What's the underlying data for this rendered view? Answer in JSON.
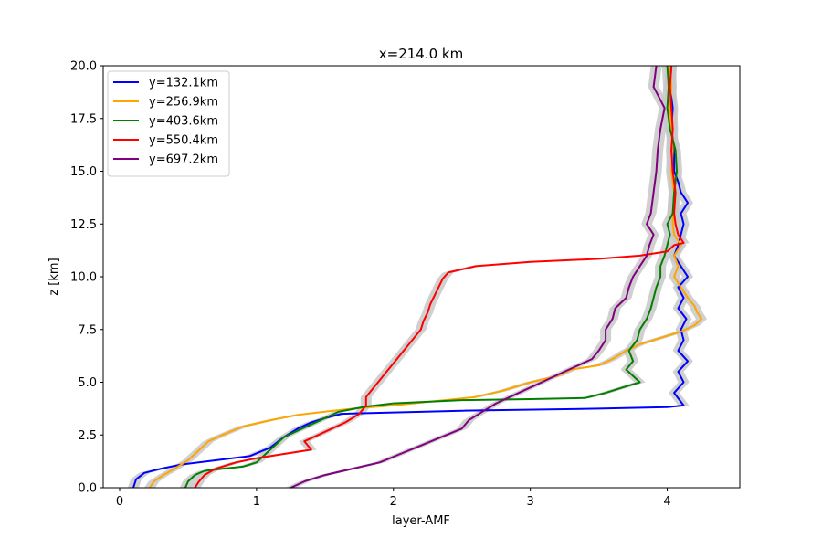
{
  "chart_data": {
    "type": "line",
    "title": "x=214.0 km",
    "xlabel": "layer-AMF",
    "ylabel": "z [km]",
    "xlim": [
      -0.12,
      4.53
    ],
    "ylim": [
      0,
      20
    ],
    "xticks": [
      0,
      1,
      2,
      3,
      4
    ],
    "xtick_labels": [
      "0",
      "1",
      "2",
      "3",
      "4"
    ],
    "yticks": [
      0,
      2.5,
      5,
      7.5,
      10,
      12.5,
      15,
      17.5,
      20
    ],
    "ytick_labels": [
      "0.0",
      "2.5",
      "5.0",
      "7.5",
      "10.0",
      "12.5",
      "15.0",
      "17.5",
      "20.0"
    ],
    "grid": false,
    "legend_position": "upper-left",
    "uncertainty_band_color": "#c8c8c8",
    "series": [
      {
        "name": "y=132.1km",
        "color": "#0000ff",
        "points": [
          [
            0.1,
            0.0
          ],
          [
            0.12,
            0.4
          ],
          [
            0.18,
            0.7
          ],
          [
            0.3,
            0.9
          ],
          [
            0.45,
            1.1
          ],
          [
            0.7,
            1.3
          ],
          [
            0.95,
            1.5
          ],
          [
            1.1,
            1.9
          ],
          [
            1.2,
            2.4
          ],
          [
            1.3,
            2.8
          ],
          [
            1.4,
            3.1
          ],
          [
            1.5,
            3.3
          ],
          [
            1.62,
            3.5
          ],
          [
            2.5,
            3.65
          ],
          [
            3.5,
            3.75
          ],
          [
            4.0,
            3.82
          ],
          [
            4.12,
            3.9
          ],
          [
            4.05,
            4.5
          ],
          [
            4.12,
            5.0
          ],
          [
            4.08,
            5.5
          ],
          [
            4.15,
            6.0
          ],
          [
            4.08,
            6.5
          ],
          [
            4.12,
            7.0
          ],
          [
            4.1,
            7.5
          ],
          [
            4.14,
            8.0
          ],
          [
            4.08,
            8.5
          ],
          [
            4.12,
            9.0
          ],
          [
            4.08,
            9.5
          ],
          [
            4.15,
            10.0
          ],
          [
            4.1,
            10.5
          ],
          [
            4.05,
            11.0
          ],
          [
            4.08,
            11.5
          ],
          [
            4.1,
            12.0
          ],
          [
            4.12,
            12.5
          ],
          [
            4.1,
            13.0
          ],
          [
            4.15,
            13.5
          ],
          [
            4.1,
            14.0
          ],
          [
            4.08,
            14.5
          ],
          [
            4.05,
            15.0
          ],
          [
            4.05,
            16.0
          ],
          [
            4.03,
            17.0
          ],
          [
            4.04,
            18.0
          ],
          [
            4.02,
            19.0
          ],
          [
            4.03,
            20.0
          ]
        ]
      },
      {
        "name": "y=256.9km",
        "color": "#ffa500",
        "points": [
          [
            0.22,
            0.0
          ],
          [
            0.25,
            0.3
          ],
          [
            0.32,
            0.6
          ],
          [
            0.4,
            0.9
          ],
          [
            0.5,
            1.3
          ],
          [
            0.55,
            1.6
          ],
          [
            0.6,
            1.9
          ],
          [
            0.65,
            2.2
          ],
          [
            0.75,
            2.5
          ],
          [
            0.9,
            2.9
          ],
          [
            1.1,
            3.2
          ],
          [
            1.3,
            3.45
          ],
          [
            1.5,
            3.6
          ],
          [
            1.7,
            3.75
          ],
          [
            2.0,
            3.9
          ],
          [
            2.3,
            4.1
          ],
          [
            2.6,
            4.3
          ],
          [
            2.8,
            4.6
          ],
          [
            3.0,
            5.0
          ],
          [
            3.2,
            5.3
          ],
          [
            3.3,
            5.6
          ],
          [
            3.5,
            5.8
          ],
          [
            3.6,
            6.1
          ],
          [
            3.7,
            6.5
          ],
          [
            3.8,
            6.8
          ],
          [
            3.9,
            7.0
          ],
          [
            4.0,
            7.2
          ],
          [
            4.1,
            7.4
          ],
          [
            4.2,
            7.7
          ],
          [
            4.25,
            8.0
          ],
          [
            4.22,
            8.3
          ],
          [
            4.2,
            8.6
          ],
          [
            4.15,
            9.0
          ],
          [
            4.1,
            9.5
          ],
          [
            4.05,
            10.0
          ],
          [
            4.08,
            10.5
          ],
          [
            4.05,
            11.0
          ],
          [
            4.1,
            11.5
          ],
          [
            4.05,
            12.0
          ],
          [
            4.04,
            12.5
          ],
          [
            4.04,
            13.0
          ],
          [
            4.05,
            14.0
          ],
          [
            4.03,
            15.0
          ],
          [
            4.04,
            16.0
          ],
          [
            4.03,
            17.0
          ],
          [
            4.02,
            18.0
          ],
          [
            4.03,
            19.0
          ],
          [
            4.02,
            20.0
          ]
        ]
      },
      {
        "name": "y=403.6km",
        "color": "#008000",
        "points": [
          [
            0.48,
            0.0
          ],
          [
            0.5,
            0.3
          ],
          [
            0.55,
            0.6
          ],
          [
            0.62,
            0.8
          ],
          [
            0.75,
            0.9
          ],
          [
            0.9,
            1.0
          ],
          [
            1.0,
            1.2
          ],
          [
            1.05,
            1.5
          ],
          [
            1.1,
            1.8
          ],
          [
            1.15,
            2.1
          ],
          [
            1.2,
            2.4
          ],
          [
            1.3,
            2.7
          ],
          [
            1.4,
            3.0
          ],
          [
            1.5,
            3.3
          ],
          [
            1.6,
            3.6
          ],
          [
            1.8,
            3.85
          ],
          [
            2.0,
            4.0
          ],
          [
            2.5,
            4.15
          ],
          [
            3.0,
            4.2
          ],
          [
            3.4,
            4.25
          ],
          [
            3.55,
            4.5
          ],
          [
            3.7,
            4.8
          ],
          [
            3.8,
            5.0
          ],
          [
            3.75,
            5.3
          ],
          [
            3.7,
            5.6
          ],
          [
            3.75,
            6.0
          ],
          [
            3.72,
            6.5
          ],
          [
            3.78,
            7.0
          ],
          [
            3.8,
            7.5
          ],
          [
            3.85,
            8.0
          ],
          [
            3.88,
            8.5
          ],
          [
            3.9,
            9.0
          ],
          [
            3.92,
            9.5
          ],
          [
            3.95,
            10.0
          ],
          [
            3.95,
            10.5
          ],
          [
            3.98,
            11.0
          ],
          [
            4.0,
            11.5
          ],
          [
            4.02,
            12.0
          ],
          [
            4.0,
            12.5
          ],
          [
            4.04,
            13.0
          ],
          [
            4.05,
            14.0
          ],
          [
            4.07,
            15.0
          ],
          [
            4.06,
            16.0
          ],
          [
            4.02,
            17.0
          ],
          [
            4.0,
            18.0
          ],
          [
            4.01,
            19.0
          ],
          [
            4.0,
            20.0
          ]
        ]
      },
      {
        "name": "y=550.4km",
        "color": "#ff0000",
        "points": [
          [
            0.55,
            0.0
          ],
          [
            0.58,
            0.3
          ],
          [
            0.62,
            0.6
          ],
          [
            0.7,
            0.9
          ],
          [
            0.85,
            1.2
          ],
          [
            1.0,
            1.4
          ],
          [
            1.2,
            1.6
          ],
          [
            1.4,
            1.8
          ],
          [
            1.35,
            2.2
          ],
          [
            1.45,
            2.5
          ],
          [
            1.55,
            2.8
          ],
          [
            1.65,
            3.1
          ],
          [
            1.75,
            3.5
          ],
          [
            1.8,
            3.9
          ],
          [
            1.8,
            4.3
          ],
          [
            1.85,
            4.7
          ],
          [
            1.9,
            5.1
          ],
          [
            1.95,
            5.5
          ],
          [
            2.0,
            5.9
          ],
          [
            2.05,
            6.3
          ],
          [
            2.1,
            6.7
          ],
          [
            2.15,
            7.1
          ],
          [
            2.2,
            7.5
          ],
          [
            2.22,
            7.9
          ],
          [
            2.25,
            8.3
          ],
          [
            2.27,
            8.7
          ],
          [
            2.3,
            9.1
          ],
          [
            2.33,
            9.5
          ],
          [
            2.36,
            9.9
          ],
          [
            2.4,
            10.2
          ],
          [
            2.6,
            10.5
          ],
          [
            3.0,
            10.7
          ],
          [
            3.5,
            10.85
          ],
          [
            3.8,
            11.0
          ],
          [
            4.0,
            11.2
          ],
          [
            4.05,
            11.5
          ],
          [
            4.12,
            11.6
          ],
          [
            4.08,
            12.0
          ],
          [
            4.06,
            12.5
          ],
          [
            4.05,
            13.0
          ],
          [
            4.06,
            14.0
          ],
          [
            4.04,
            15.0
          ],
          [
            4.03,
            16.0
          ],
          [
            4.04,
            17.0
          ],
          [
            4.03,
            18.0
          ],
          [
            4.02,
            19.0
          ],
          [
            4.03,
            20.0
          ]
        ]
      },
      {
        "name": "y=697.2km",
        "color": "#800080",
        "points": [
          [
            1.25,
            0.0
          ],
          [
            1.35,
            0.3
          ],
          [
            1.5,
            0.6
          ],
          [
            1.7,
            0.9
          ],
          [
            1.9,
            1.2
          ],
          [
            2.05,
            1.6
          ],
          [
            2.2,
            2.0
          ],
          [
            2.35,
            2.4
          ],
          [
            2.5,
            2.8
          ],
          [
            2.55,
            3.2
          ],
          [
            2.65,
            3.6
          ],
          [
            2.75,
            4.0
          ],
          [
            2.85,
            4.3
          ],
          [
            2.95,
            4.6
          ],
          [
            3.05,
            4.9
          ],
          [
            3.15,
            5.2
          ],
          [
            3.25,
            5.5
          ],
          [
            3.35,
            5.8
          ],
          [
            3.45,
            6.1
          ],
          [
            3.5,
            6.5
          ],
          [
            3.55,
            7.0
          ],
          [
            3.55,
            7.5
          ],
          [
            3.6,
            8.0
          ],
          [
            3.62,
            8.5
          ],
          [
            3.7,
            9.0
          ],
          [
            3.72,
            9.5
          ],
          [
            3.75,
            10.0
          ],
          [
            3.8,
            10.5
          ],
          [
            3.85,
            11.0
          ],
          [
            3.87,
            11.5
          ],
          [
            3.9,
            12.0
          ],
          [
            3.85,
            12.5
          ],
          [
            3.88,
            13.0
          ],
          [
            3.9,
            14.0
          ],
          [
            3.92,
            15.0
          ],
          [
            3.93,
            16.0
          ],
          [
            3.95,
            17.0
          ],
          [
            3.98,
            18.0
          ],
          [
            3.9,
            19.0
          ],
          [
            3.92,
            20.0
          ]
        ]
      }
    ]
  }
}
